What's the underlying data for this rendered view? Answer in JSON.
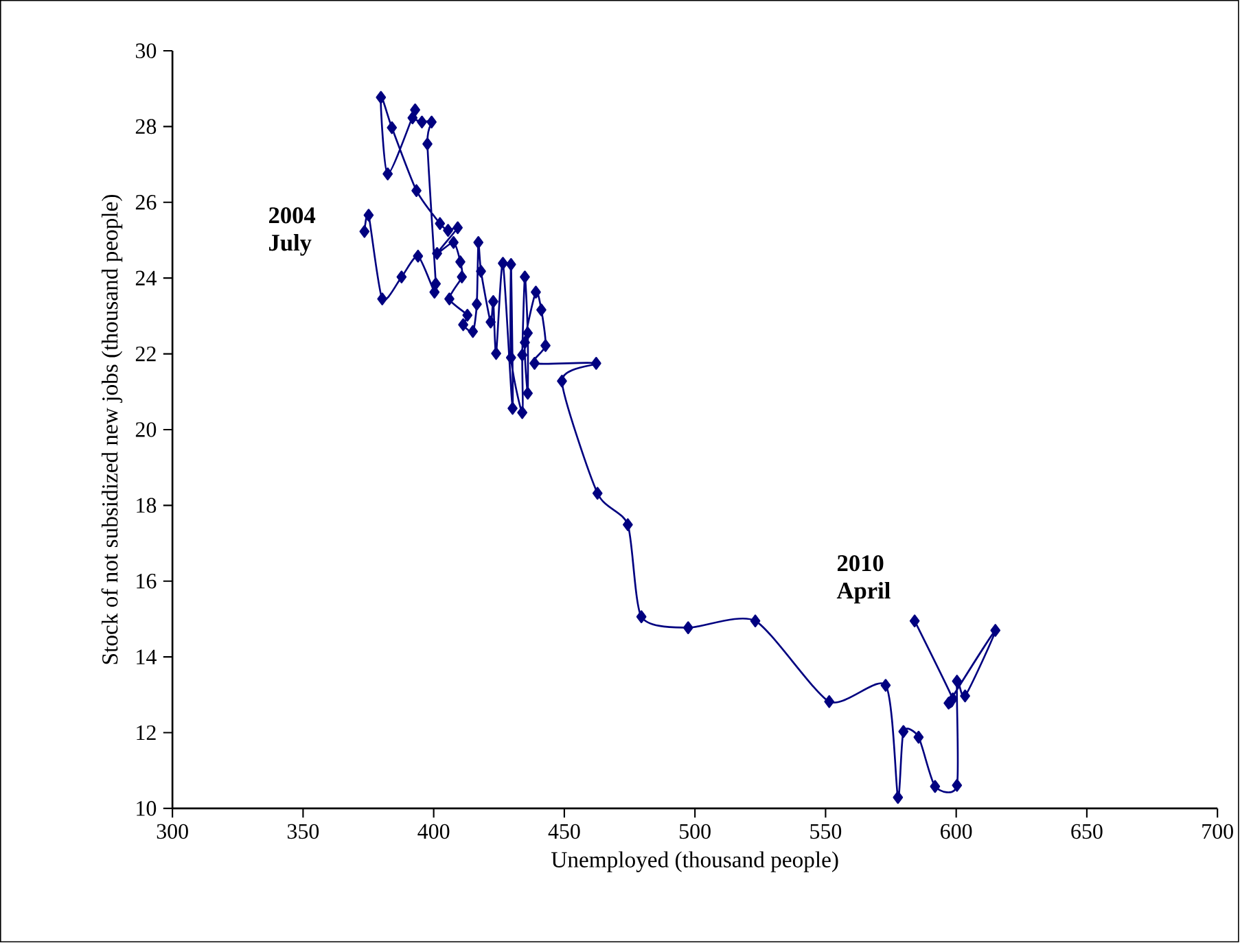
{
  "chart_data": {
    "type": "line",
    "xlabel": "Unemployed (thousand people)",
    "ylabel": "Stock of not subsidized new jobs (thousand people)",
    "series": [
      {
        "color": "#000080",
        "x": [
          373.5,
          375.1,
          380.3,
          387.7,
          394.0,
          400.3,
          400.8,
          397.6,
          399.2,
          395.5,
          391.9,
          392.9,
          382.4,
          379.8,
          384.0,
          393.4,
          402.4,
          405.5,
          409.2,
          401.3,
          407.6,
          410.2,
          410.8,
          406.0,
          412.9,
          411.3,
          415.0,
          416.5,
          417.1,
          418.1,
          421.8,
          422.8,
          423.9,
          426.5,
          430.2,
          429.6,
          429.6,
          433.9,
          433.9,
          434.9,
          436.0,
          436.0,
          434.9,
          439.1,
          441.2,
          442.8,
          438.6,
          462.2,
          449.1,
          462.7,
          474.3,
          479.5,
          497.4,
          523.1,
          551.4,
          573.0,
          577.7,
          579.8,
          585.6,
          591.9,
          600.3,
          600.3,
          603.4,
          615.0,
          597.1,
          598.7,
          584.1
        ],
        "values": [
          25.23,
          25.66,
          23.45,
          24.03,
          24.58,
          23.63,
          23.85,
          27.54,
          28.12,
          28.12,
          28.23,
          28.44,
          26.75,
          28.77,
          27.97,
          26.31,
          25.44,
          25.26,
          25.33,
          24.65,
          24.94,
          24.43,
          24.03,
          23.45,
          23.02,
          22.77,
          22.59,
          23.31,
          24.94,
          24.18,
          22.84,
          23.38,
          22.01,
          24.39,
          20.56,
          24.36,
          21.9,
          20.45,
          21.97,
          24.03,
          22.55,
          20.96,
          22.3,
          23.63,
          23.16,
          22.22,
          21.75,
          21.75,
          21.28,
          18.32,
          17.49,
          15.06,
          14.77,
          14.95,
          12.82,
          13.25,
          10.29,
          12.03,
          11.88,
          10.58,
          10.61,
          13.36,
          12.97,
          14.7,
          12.78,
          12.89,
          14.95
        ]
      }
    ],
    "marker": "diamond",
    "line_style": "solid",
    "xlim": [
      300,
      700
    ],
    "xticks": [
      300,
      350,
      400,
      450,
      500,
      550,
      600,
      650,
      700
    ],
    "ylim": [
      10,
      30
    ],
    "yticks": [
      10,
      12,
      14,
      16,
      18,
      20,
      22,
      24,
      26,
      28,
      30
    ],
    "annotations": [
      {
        "text": "2004 July",
        "x": 373.5,
        "y": 25.23
      },
      {
        "text": "2010 April",
        "x": 584.1,
        "y": 14.95
      }
    ]
  }
}
